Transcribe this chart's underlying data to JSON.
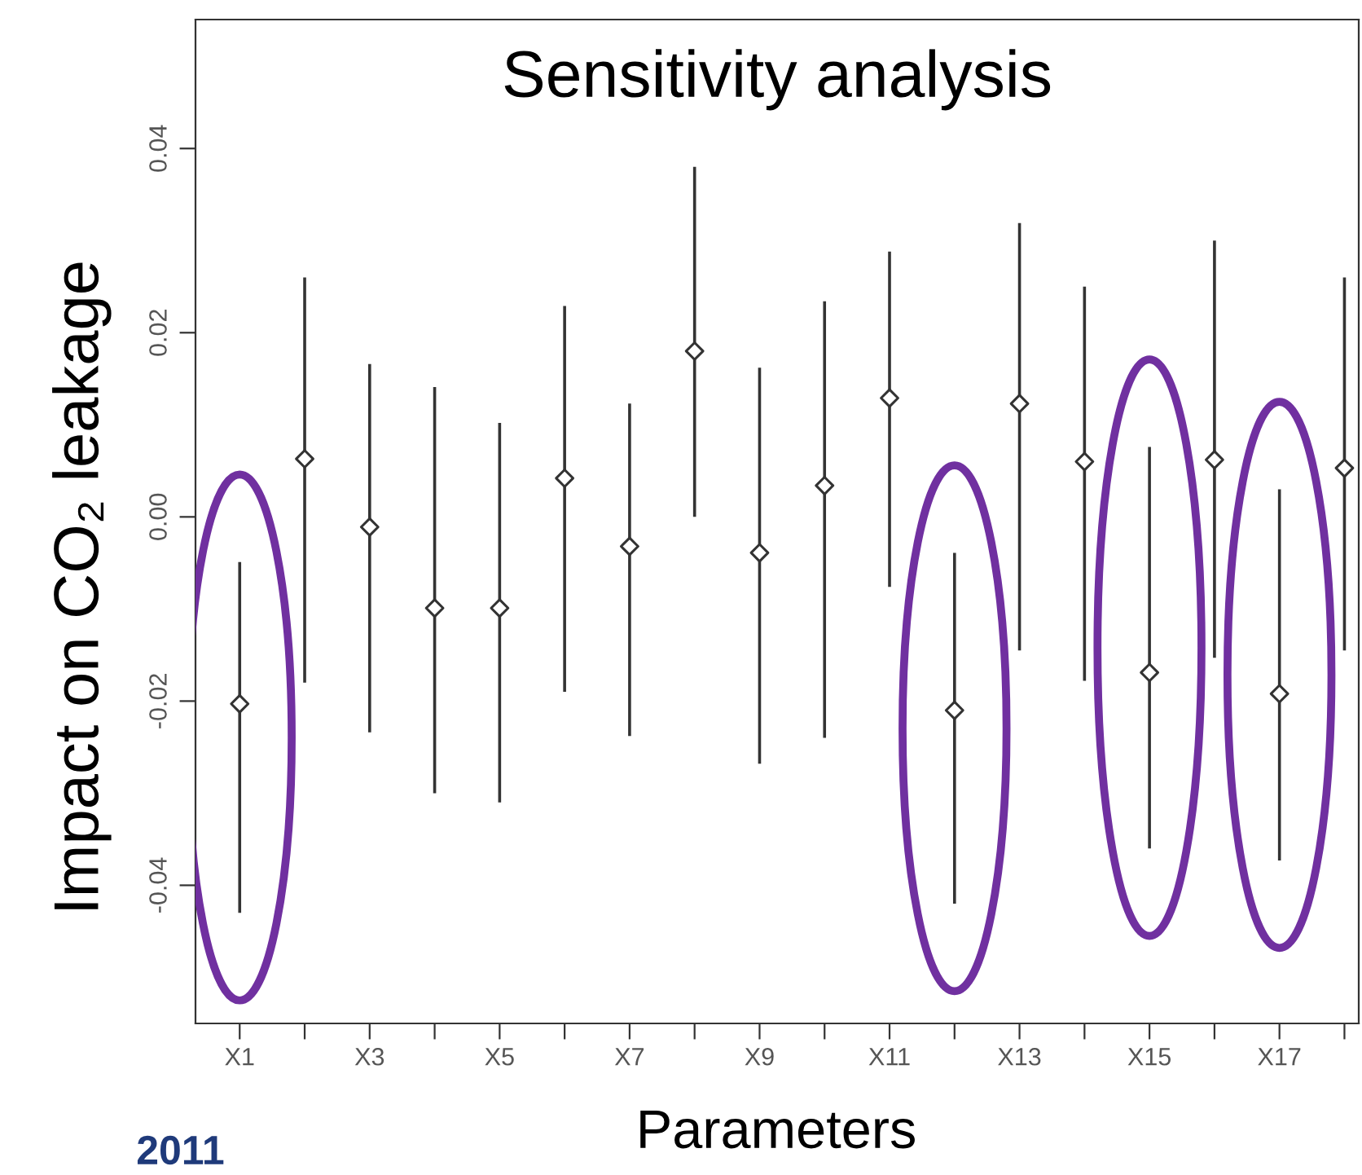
{
  "chart_data": {
    "type": "scatter",
    "title": "Sensitivity analysis",
    "xlabel": "Parameters",
    "ylabel": "Impact on CO₂ leakage",
    "categories": [
      "X1",
      null,
      "X3",
      null,
      "X5",
      null,
      "X7",
      null,
      "X9",
      null,
      "X11",
      null,
      "X13",
      null,
      "X15",
      null,
      "X17",
      null
    ],
    "series": [
      {
        "color": "#333333",
        "values": [
          -0.0203,
          0.0063,
          -0.0011,
          -0.0099,
          -0.0099,
          0.0042,
          -0.0032,
          0.018,
          -0.0039,
          0.0034,
          0.0129,
          -0.021,
          0.0123,
          0.006,
          -0.0169,
          0.0062,
          -0.0192,
          0.0053
        ],
        "errors": [
          [
            -0.043,
            -0.0049
          ],
          [
            -0.018,
            0.026
          ],
          [
            -0.0234,
            0.0166
          ],
          [
            -0.03,
            0.0141
          ],
          [
            -0.031,
            0.0102
          ],
          [
            -0.019,
            0.0229
          ],
          [
            -0.0238,
            0.0123
          ],
          [
            0.0,
            0.038
          ],
          [
            -0.0268,
            0.0162
          ],
          [
            -0.024,
            0.0234
          ],
          [
            -0.0076,
            0.0288
          ],
          [
            -0.042,
            -0.0039
          ],
          [
            -0.0145,
            0.0319
          ],
          [
            -0.0178,
            0.025
          ],
          [
            -0.036,
            0.0076
          ],
          [
            -0.0153,
            0.03
          ],
          [
            -0.0373,
            0.003
          ],
          [
            -0.0145,
            0.026
          ]
        ]
      }
    ],
    "ylim": [
      -0.055,
      0.054
    ],
    "yticks": [
      {
        "value": -0.04,
        "label": "-0.04"
      },
      {
        "value": -0.02,
        "label": "-0.02"
      },
      {
        "value": 0,
        "label": "0.00"
      },
      {
        "value": 0.02,
        "label": "0.02"
      },
      {
        "value": 0.04,
        "label": "0.04"
      }
    ],
    "marker": "diamond",
    "grid": false,
    "legend": false,
    "annotations": [
      "2011"
    ]
  }
}
